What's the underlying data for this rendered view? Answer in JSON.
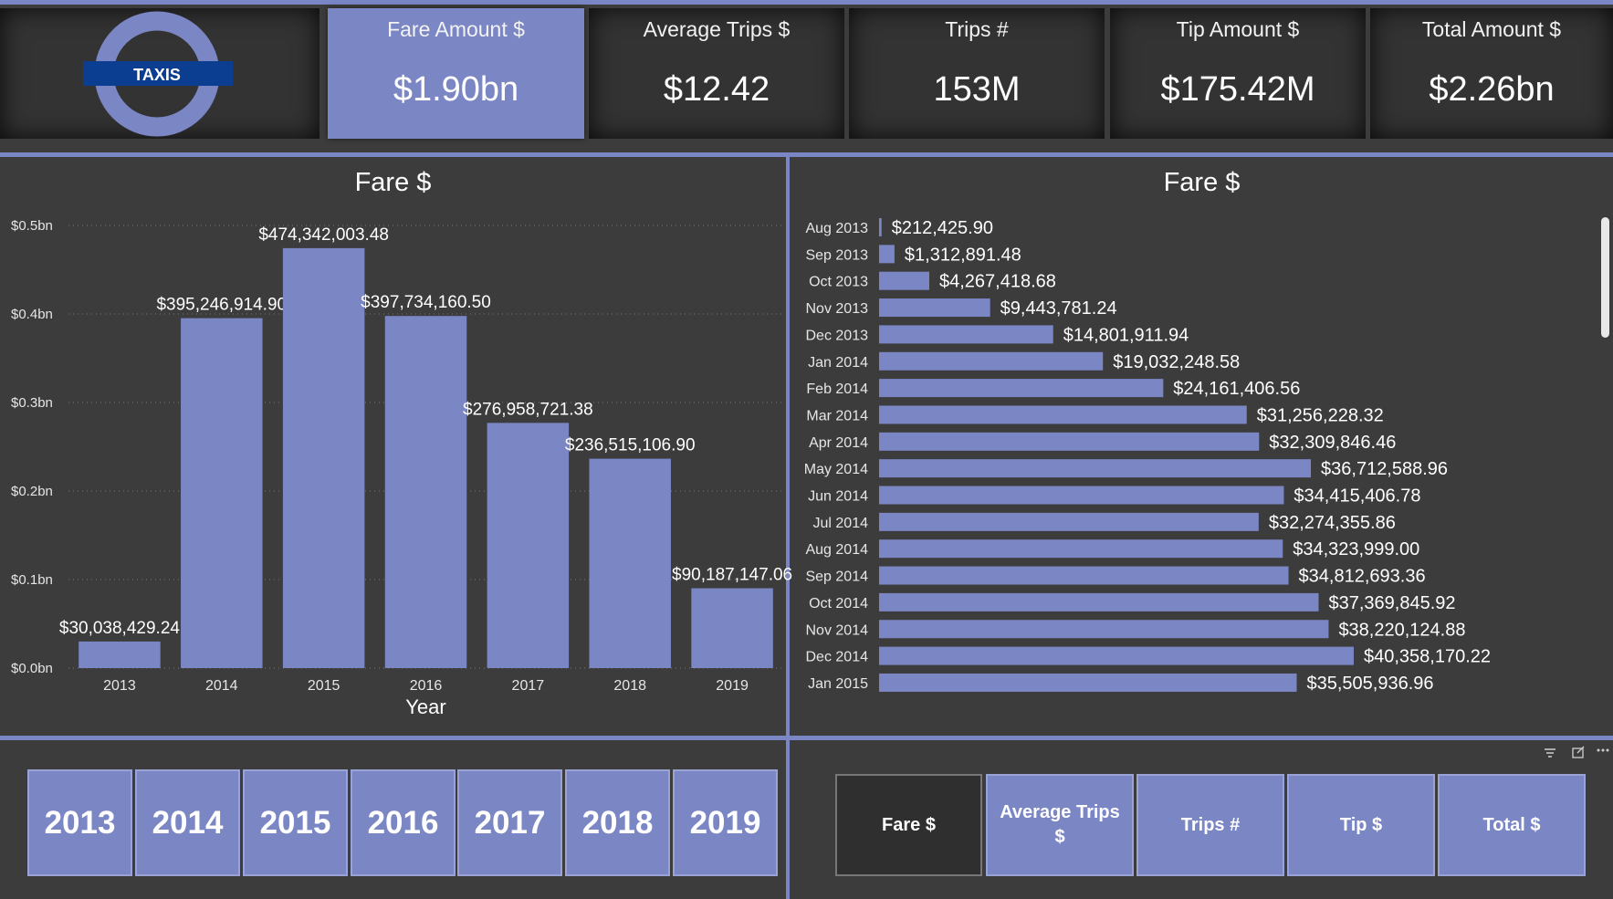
{
  "logo": {
    "text": "TAXIS",
    "ring_color": "#7b86c4",
    "bar_color": "#0b3d91"
  },
  "kpis": [
    {
      "title": "Fare Amount $",
      "value": "$1.90bn",
      "active": true
    },
    {
      "title": "Average Trips $",
      "value": "$12.42",
      "active": false
    },
    {
      "title": "Trips #",
      "value": "153M",
      "active": false
    },
    {
      "title": "Tip Amount $",
      "value": "$175.42M",
      "active": false
    },
    {
      "title": "Total Amount $",
      "value": "$2.26bn",
      "active": false
    }
  ],
  "colors": {
    "accent": "#7b86c4",
    "background": "#3c3c3c",
    "card": "#333333",
    "gridline": "#777777"
  },
  "chart_data": [
    {
      "type": "bar",
      "title": "Fare $",
      "xlabel": "Year",
      "ylabel": "",
      "categories": [
        "2013",
        "2014",
        "2015",
        "2016",
        "2017",
        "2018",
        "2019"
      ],
      "values": [
        30038429.24,
        395246914.9,
        474342003.48,
        397734160.5,
        276958721.38,
        236515106.9,
        90187147.06
      ],
      "data_labels": [
        "$30,038,429.24",
        "$395,246,914.90",
        "$474,342,003.48",
        "$397,734,160.50",
        "$276,958,721.38",
        "$236,515,106.90",
        "$90,187,147.06"
      ],
      "ylim": [
        0,
        500000000
      ],
      "yticks": [
        0,
        100000000,
        200000000,
        300000000,
        400000000,
        500000000
      ],
      "ytick_labels": [
        "$0.0bn",
        "$0.1bn",
        "$0.2bn",
        "$0.3bn",
        "$0.4bn",
        "$0.5bn"
      ],
      "grid": true,
      "color": "#7b86c4"
    },
    {
      "type": "bar",
      "orientation": "horizontal",
      "title": "Fare $",
      "categories": [
        "Aug 2013",
        "Sep 2013",
        "Oct 2013",
        "Nov 2013",
        "Dec 2013",
        "Jan 2014",
        "Feb 2014",
        "Mar 2014",
        "Apr 2014",
        "May 2014",
        "Jun 2014",
        "Jul 2014",
        "Aug 2014",
        "Sep 2014",
        "Oct 2014",
        "Nov 2014",
        "Dec 2014",
        "Jan 2015"
      ],
      "values": [
        212425.9,
        1312891.48,
        4267418.68,
        9443781.24,
        14801911.94,
        19032248.58,
        24161406.56,
        31256228.32,
        32309846.46,
        36712588.96,
        34415406.78,
        32274355.86,
        34323999.0,
        34812693.36,
        37369845.92,
        38220124.88,
        40358170.22,
        35505936.96
      ],
      "data_labels": [
        "$212,425.90",
        "$1,312,891.48",
        "$4,267,418.68",
        "$9,443,781.24",
        "$14,801,911.94",
        "$19,032,248.58",
        "$24,161,406.56",
        "$31,256,228.32",
        "$32,309,846.46",
        "$36,712,588.96",
        "$34,415,406.78",
        "$32,274,355.86",
        "$34,323,999.00",
        "$34,812,693.36",
        "$37,369,845.92",
        "$38,220,124.88",
        "$40,358,170.22",
        "$35,505,936.96"
      ],
      "grid": false,
      "color": "#7b86c4"
    }
  ],
  "year_slicer": [
    "2013",
    "2014",
    "2015",
    "2016",
    "2017",
    "2018",
    "2019"
  ],
  "measure_buttons": [
    {
      "label": "Fare $",
      "selected": true
    },
    {
      "label": "Average Trips $",
      "selected": false
    },
    {
      "label": "Trips #",
      "selected": false
    },
    {
      "label": "Tip $",
      "selected": false
    },
    {
      "label": "Total $",
      "selected": false
    }
  ],
  "visual_header_icons": [
    "filter-icon",
    "focus-mode-icon",
    "more-options-icon"
  ]
}
